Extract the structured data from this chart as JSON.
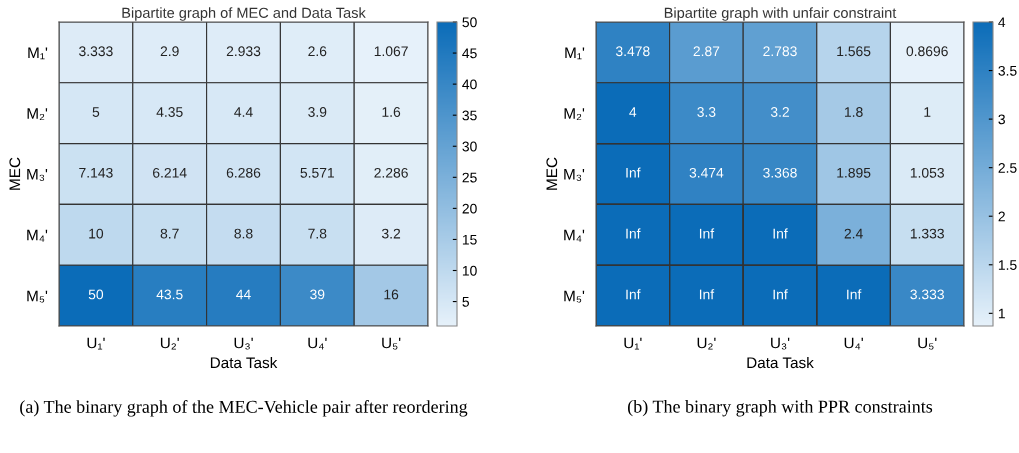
{
  "chart_data": [
    {
      "type": "heatmap",
      "title": "Bipartite graph of MEC and Data Task",
      "xlabel": "Data Task",
      "ylabel": "MEC",
      "categories": [
        "U₁'",
        "U₂'",
        "U₃'",
        "U₄'",
        "U₅'"
      ],
      "y_categories": [
        "M₁'",
        "M₂'",
        "M₃'",
        "M₄'",
        "M₅'"
      ],
      "cells": [
        [
          3.333,
          2.9,
          2.933,
          2.6,
          1.067
        ],
        [
          5,
          4.35,
          4.4,
          3.9,
          1.6
        ],
        [
          7.143,
          6.214,
          6.286,
          5.571,
          2.286
        ],
        [
          10,
          8.7,
          8.8,
          7.8,
          3.2
        ],
        [
          50,
          43.5,
          44,
          39,
          16
        ]
      ],
      "data_labels": true,
      "colors": [
        "#e6f1fa",
        "#0b6cb8"
      ],
      "clim": [
        1.067,
        50
      ],
      "cticks": [
        5,
        10,
        15,
        20,
        25,
        30,
        35,
        40,
        45,
        50
      ],
      "annotations": [
        "(a) The binary graph of the MEC-Vehicle pair after reordering"
      ]
    },
    {
      "type": "heatmap",
      "title": "Bipartite graph with unfair constraint",
      "xlabel": "Data Task",
      "ylabel": "MEC",
      "categories": [
        "U₁'",
        "U₂'",
        "U₃'",
        "U₄'",
        "U₅'"
      ],
      "y_categories": [
        "M₁'",
        "M₂'",
        "M₃'",
        "M₄'",
        "M₅'"
      ],
      "cells": [
        [
          3.478,
          2.87,
          2.783,
          1.565,
          0.8696
        ],
        [
          4,
          3.3,
          3.2,
          1.8,
          1
        ],
        [
          null,
          3.474,
          3.368,
          1.895,
          1.053
        ],
        [
          null,
          null,
          null,
          2.4,
          1.333
        ],
        [
          null,
          null,
          null,
          null,
          3.333
        ]
      ],
      "cell_labels": [
        [
          "3.478",
          "2.87",
          "2.783",
          "1.565",
          "0.8696"
        ],
        [
          "4",
          "3.3",
          "3.2",
          "1.8",
          "1"
        ],
        [
          "Inf",
          "3.474",
          "3.368",
          "1.895",
          "1.053"
        ],
        [
          "Inf",
          "Inf",
          "Inf",
          "2.4",
          "1.333"
        ],
        [
          "Inf",
          "Inf",
          "Inf",
          "Inf",
          "3.333"
        ]
      ],
      "data_labels": true,
      "colors": [
        "#e6f1fa",
        "#0b6cb8"
      ],
      "clim": [
        0.8696,
        4
      ],
      "cticks": [
        1,
        1.5,
        2,
        2.5,
        3,
        3.5,
        4
      ],
      "annotations": [
        "(b) The binary graph with PPR constraints"
      ]
    }
  ]
}
